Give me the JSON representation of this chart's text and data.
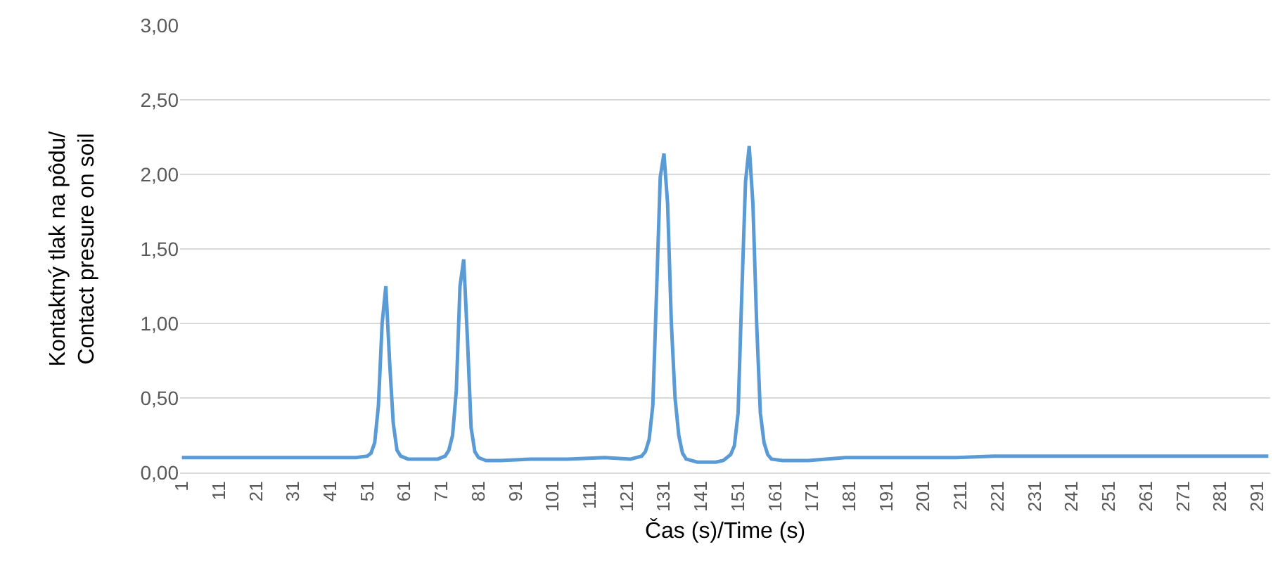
{
  "chart_data": {
    "type": "line",
    "xlabel": "Čas (s)/Time (s)",
    "ylabel": "Kontaktný tlak na pôdu/\nContact presure on soil",
    "x": [
      1,
      11,
      21,
      31,
      41,
      48,
      51,
      52,
      53,
      54,
      55,
      56,
      57,
      58,
      59,
      60,
      62,
      66,
      70,
      72,
      73,
      74,
      75,
      76,
      77,
      78,
      79,
      80,
      81,
      83,
      87,
      95,
      105,
      115,
      122,
      125,
      126,
      127,
      128,
      129,
      130,
      131,
      132,
      133,
      134,
      135,
      136,
      137,
      140,
      145,
      147,
      148,
      149,
      150,
      151,
      152,
      153,
      154,
      155,
      156,
      157,
      158,
      159,
      160,
      163,
      170,
      180,
      190,
      200,
      210,
      220,
      230,
      240,
      250,
      260,
      270,
      280,
      290,
      294
    ],
    "series": [
      {
        "color": "#5b9bd5",
        "values": [
          0.1,
          0.1,
          0.1,
          0.1,
          0.1,
          0.1,
          0.11,
          0.13,
          0.2,
          0.45,
          1.0,
          1.25,
          0.75,
          0.33,
          0.15,
          0.11,
          0.09,
          0.09,
          0.09,
          0.11,
          0.15,
          0.25,
          0.55,
          1.25,
          1.43,
          0.9,
          0.3,
          0.14,
          0.1,
          0.08,
          0.08,
          0.09,
          0.09,
          0.1,
          0.09,
          0.11,
          0.14,
          0.22,
          0.45,
          1.2,
          1.98,
          2.14,
          1.8,
          1.0,
          0.5,
          0.25,
          0.13,
          0.09,
          0.07,
          0.07,
          0.08,
          0.1,
          0.12,
          0.18,
          0.4,
          1.2,
          1.95,
          2.19,
          1.8,
          1.0,
          0.4,
          0.2,
          0.12,
          0.09,
          0.08,
          0.08,
          0.1,
          0.1,
          0.1,
          0.1,
          0.11,
          0.11,
          0.11,
          0.11,
          0.11,
          0.11,
          0.11,
          0.11,
          0.11
        ]
      }
    ],
    "xlim": [
      0.5,
      294.5
    ],
    "xticks": [
      1,
      11,
      21,
      31,
      41,
      51,
      61,
      71,
      81,
      91,
      101,
      111,
      121,
      131,
      141,
      151,
      161,
      171,
      181,
      191,
      201,
      211,
      221,
      231,
      241,
      251,
      261,
      271,
      281,
      291
    ],
    "ylim": [
      0,
      3
    ],
    "yticks": [
      {
        "value": 0,
        "label": "0,00"
      },
      {
        "value": 0.5,
        "label": "0,50"
      },
      {
        "value": 1,
        "label": "1,00"
      },
      {
        "value": 1.5,
        "label": "1,50"
      },
      {
        "value": 2,
        "label": "2,00"
      },
      {
        "value": 2.5,
        "label": "2,50"
      },
      {
        "value": 3,
        "label": "3,00"
      }
    ],
    "grid": "y",
    "marker": "none",
    "line_style": "solid"
  }
}
